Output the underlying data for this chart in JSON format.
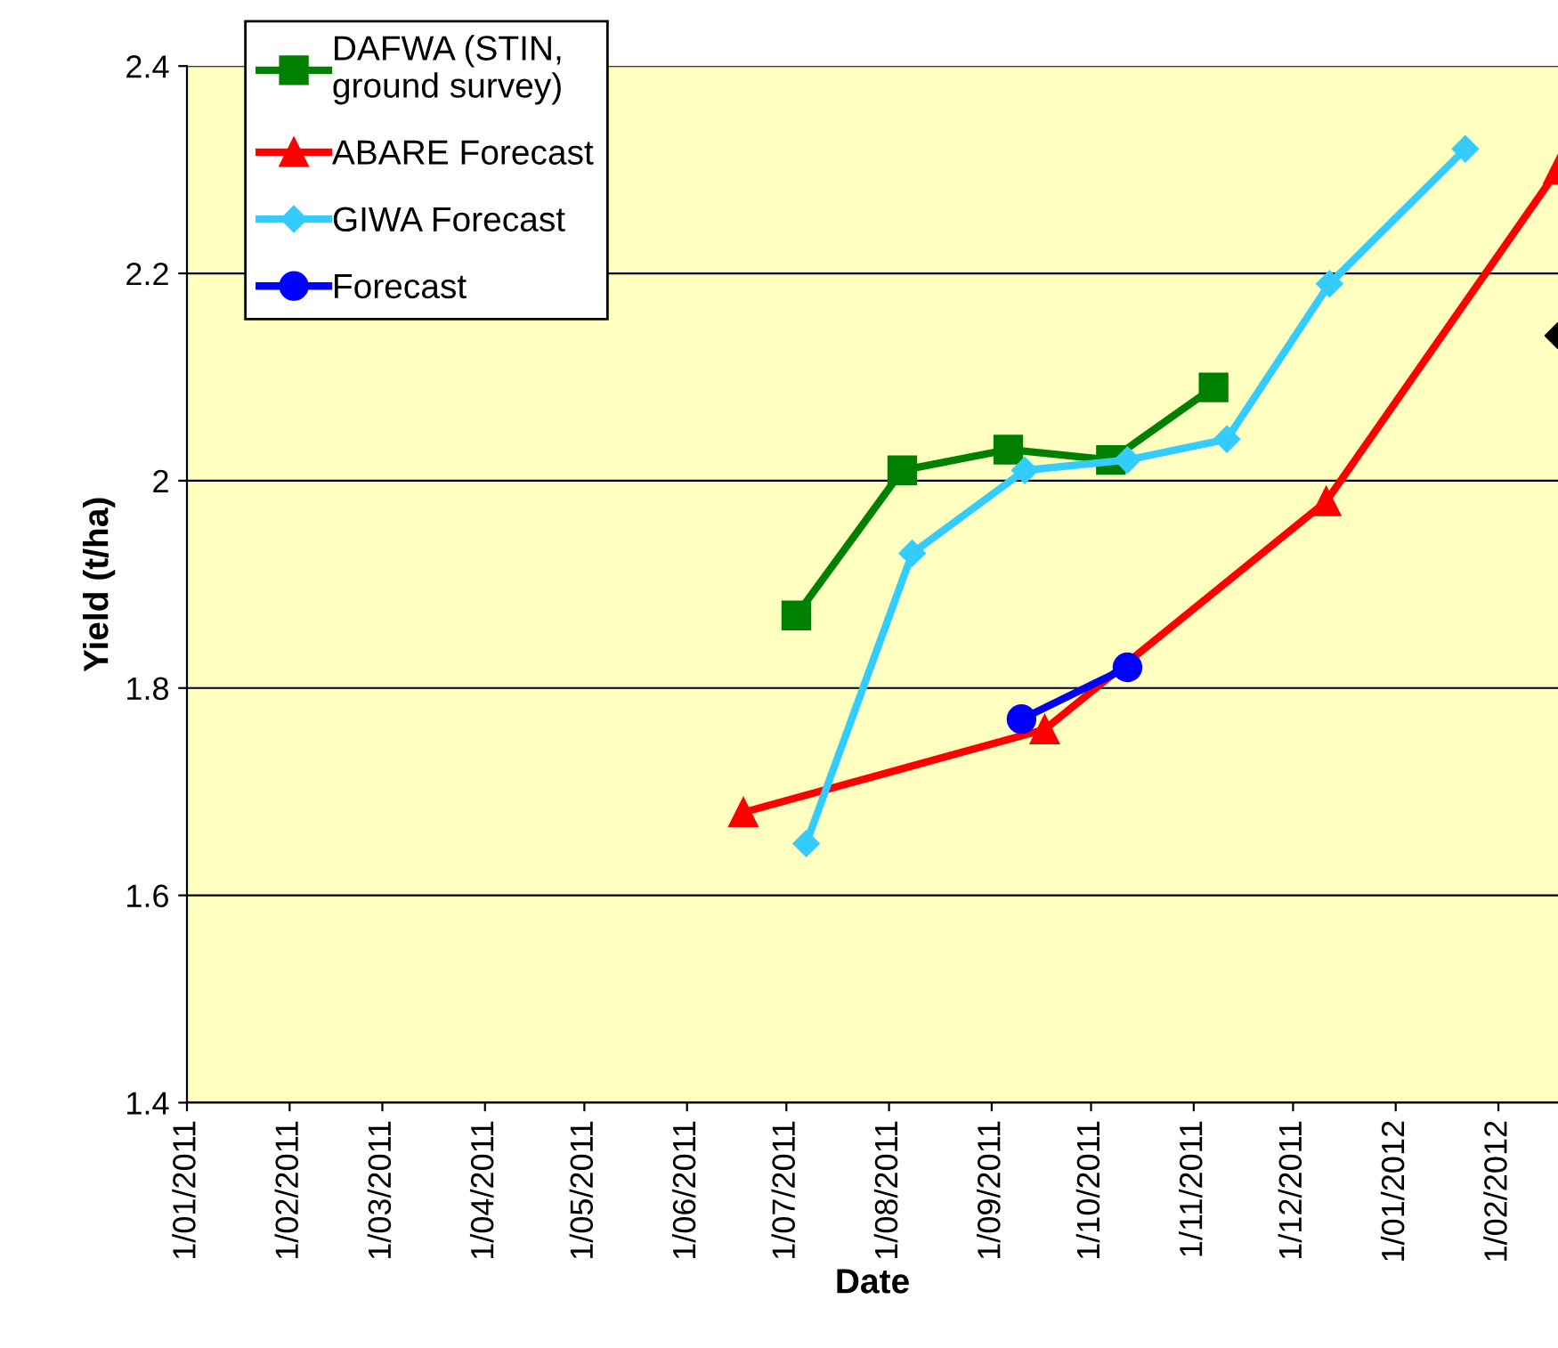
{
  "chart_data": {
    "type": "line",
    "xlabel": "Date",
    "ylabel": "Yield (t/ha)",
    "xlim": [
      "2011-01-01",
      "2012-02-19"
    ],
    "xticks": [
      {
        "value": "2011-01-01",
        "label": "1/01/2011"
      },
      {
        "value": "2011-02-01",
        "label": "1/02/2011"
      },
      {
        "value": "2011-03-01",
        "label": "1/03/2011"
      },
      {
        "value": "2011-04-01",
        "label": "1/04/2011"
      },
      {
        "value": "2011-05-01",
        "label": "1/05/2011"
      },
      {
        "value": "2011-06-01",
        "label": "1/06/2011"
      },
      {
        "value": "2011-07-01",
        "label": "1/07/2011"
      },
      {
        "value": "2011-08-01",
        "label": "1/08/2011"
      },
      {
        "value": "2011-09-01",
        "label": "1/09/2011"
      },
      {
        "value": "2011-10-01",
        "label": "1/10/2011"
      },
      {
        "value": "2011-11-01",
        "label": "1/11/2011"
      },
      {
        "value": "2011-12-01",
        "label": "1/12/2011"
      },
      {
        "value": "2012-01-01",
        "label": "1/01/2012"
      },
      {
        "value": "2012-02-01",
        "label": "1/02/2012"
      }
    ],
    "ylim": [
      1.4,
      2.4
    ],
    "yticks": [
      {
        "value": 1.4,
        "label": "1.4"
      },
      {
        "value": 1.6,
        "label": "1.6"
      },
      {
        "value": 1.8,
        "label": "1.8"
      },
      {
        "value": 2.0,
        "label": "2"
      },
      {
        "value": 2.2,
        "label": "2.2"
      },
      {
        "value": 2.4,
        "label": "2.4"
      }
    ],
    "grid": "y",
    "legend": "top left",
    "series": [
      {
        "name": "DAFWA (STIN,\nground survey)",
        "color": "#008000",
        "marker": "square",
        "x": [
          "2011-07-04",
          "2011-08-05",
          "2011-09-06",
          "2011-10-07",
          "2011-11-07"
        ],
        "values": [
          1.87,
          2.01,
          2.03,
          2.02,
          2.09
        ]
      },
      {
        "name": "ABARE Forecast",
        "color": "#ff0000",
        "marker": "triangle",
        "x": [
          "2011-06-18",
          "2011-09-17",
          "2011-12-11",
          "2012-02-19"
        ],
        "values": [
          1.68,
          1.76,
          1.98,
          2.3
        ]
      },
      {
        "name": "GIWA Forecast",
        "color": "#33ccff",
        "marker": "diamond",
        "x": [
          "2011-07-07",
          "2011-08-08",
          "2011-09-11",
          "2011-10-12",
          "2011-11-11",
          "2011-12-12",
          "2012-01-22"
        ],
        "values": [
          1.65,
          1.93,
          2.01,
          2.02,
          2.04,
          2.19,
          2.32
        ]
      },
      {
        "name": "Forecast",
        "color": "#0000ff",
        "marker": "circle",
        "x": [
          "2011-09-10",
          "2011-10-12"
        ],
        "values": [
          1.77,
          1.82
        ]
      },
      {
        "type": "scatter",
        "color": "#000000",
        "marker": "diamond",
        "x": [
          "2012-02-19"
        ],
        "values": [
          2.14
        ]
      }
    ]
  }
}
